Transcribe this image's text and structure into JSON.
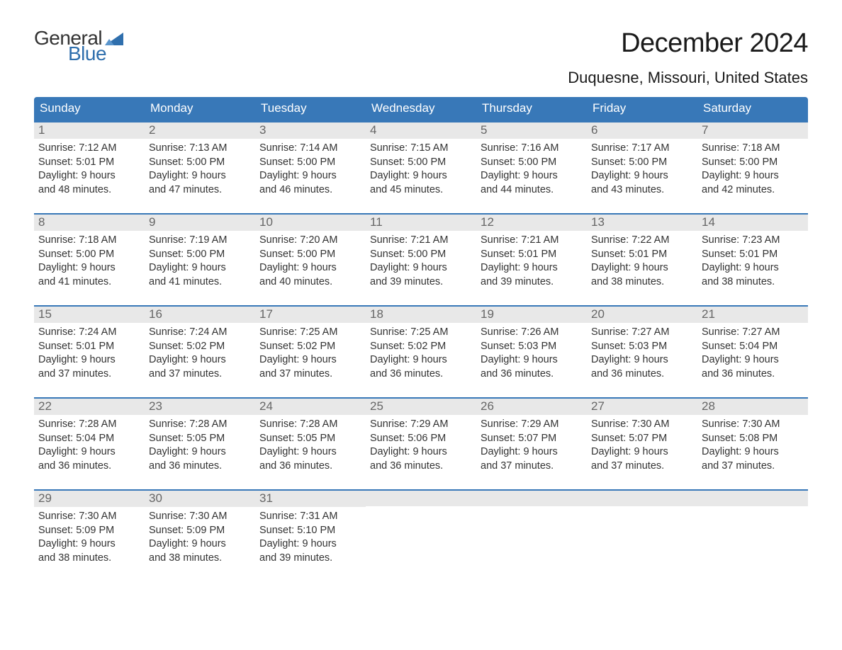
{
  "logo": {
    "text_general": "General",
    "text_blue": "Blue",
    "flag_color": "#2f6fad"
  },
  "title": "December 2024",
  "location": "Duquesne, Missouri, United States",
  "colors": {
    "header_bg": "#3878b8",
    "header_text": "#ffffff",
    "daynum_bg": "#e8e8e8",
    "daynum_text": "#666666",
    "row_border": "#3878b8",
    "body_text": "#333333",
    "page_bg": "#ffffff"
  },
  "day_labels": [
    "Sunday",
    "Monday",
    "Tuesday",
    "Wednesday",
    "Thursday",
    "Friday",
    "Saturday"
  ],
  "weeks": [
    [
      {
        "n": "1",
        "sr": "Sunrise: 7:12 AM",
        "ss": "Sunset: 5:01 PM",
        "d1": "Daylight: 9 hours",
        "d2": "and 48 minutes."
      },
      {
        "n": "2",
        "sr": "Sunrise: 7:13 AM",
        "ss": "Sunset: 5:00 PM",
        "d1": "Daylight: 9 hours",
        "d2": "and 47 minutes."
      },
      {
        "n": "3",
        "sr": "Sunrise: 7:14 AM",
        "ss": "Sunset: 5:00 PM",
        "d1": "Daylight: 9 hours",
        "d2": "and 46 minutes."
      },
      {
        "n": "4",
        "sr": "Sunrise: 7:15 AM",
        "ss": "Sunset: 5:00 PM",
        "d1": "Daylight: 9 hours",
        "d2": "and 45 minutes."
      },
      {
        "n": "5",
        "sr": "Sunrise: 7:16 AM",
        "ss": "Sunset: 5:00 PM",
        "d1": "Daylight: 9 hours",
        "d2": "and 44 minutes."
      },
      {
        "n": "6",
        "sr": "Sunrise: 7:17 AM",
        "ss": "Sunset: 5:00 PM",
        "d1": "Daylight: 9 hours",
        "d2": "and 43 minutes."
      },
      {
        "n": "7",
        "sr": "Sunrise: 7:18 AM",
        "ss": "Sunset: 5:00 PM",
        "d1": "Daylight: 9 hours",
        "d2": "and 42 minutes."
      }
    ],
    [
      {
        "n": "8",
        "sr": "Sunrise: 7:18 AM",
        "ss": "Sunset: 5:00 PM",
        "d1": "Daylight: 9 hours",
        "d2": "and 41 minutes."
      },
      {
        "n": "9",
        "sr": "Sunrise: 7:19 AM",
        "ss": "Sunset: 5:00 PM",
        "d1": "Daylight: 9 hours",
        "d2": "and 41 minutes."
      },
      {
        "n": "10",
        "sr": "Sunrise: 7:20 AM",
        "ss": "Sunset: 5:00 PM",
        "d1": "Daylight: 9 hours",
        "d2": "and 40 minutes."
      },
      {
        "n": "11",
        "sr": "Sunrise: 7:21 AM",
        "ss": "Sunset: 5:00 PM",
        "d1": "Daylight: 9 hours",
        "d2": "and 39 minutes."
      },
      {
        "n": "12",
        "sr": "Sunrise: 7:21 AM",
        "ss": "Sunset: 5:01 PM",
        "d1": "Daylight: 9 hours",
        "d2": "and 39 minutes."
      },
      {
        "n": "13",
        "sr": "Sunrise: 7:22 AM",
        "ss": "Sunset: 5:01 PM",
        "d1": "Daylight: 9 hours",
        "d2": "and 38 minutes."
      },
      {
        "n": "14",
        "sr": "Sunrise: 7:23 AM",
        "ss": "Sunset: 5:01 PM",
        "d1": "Daylight: 9 hours",
        "d2": "and 38 minutes."
      }
    ],
    [
      {
        "n": "15",
        "sr": "Sunrise: 7:24 AM",
        "ss": "Sunset: 5:01 PM",
        "d1": "Daylight: 9 hours",
        "d2": "and 37 minutes."
      },
      {
        "n": "16",
        "sr": "Sunrise: 7:24 AM",
        "ss": "Sunset: 5:02 PM",
        "d1": "Daylight: 9 hours",
        "d2": "and 37 minutes."
      },
      {
        "n": "17",
        "sr": "Sunrise: 7:25 AM",
        "ss": "Sunset: 5:02 PM",
        "d1": "Daylight: 9 hours",
        "d2": "and 37 minutes."
      },
      {
        "n": "18",
        "sr": "Sunrise: 7:25 AM",
        "ss": "Sunset: 5:02 PM",
        "d1": "Daylight: 9 hours",
        "d2": "and 36 minutes."
      },
      {
        "n": "19",
        "sr": "Sunrise: 7:26 AM",
        "ss": "Sunset: 5:03 PM",
        "d1": "Daylight: 9 hours",
        "d2": "and 36 minutes."
      },
      {
        "n": "20",
        "sr": "Sunrise: 7:27 AM",
        "ss": "Sunset: 5:03 PM",
        "d1": "Daylight: 9 hours",
        "d2": "and 36 minutes."
      },
      {
        "n": "21",
        "sr": "Sunrise: 7:27 AM",
        "ss": "Sunset: 5:04 PM",
        "d1": "Daylight: 9 hours",
        "d2": "and 36 minutes."
      }
    ],
    [
      {
        "n": "22",
        "sr": "Sunrise: 7:28 AM",
        "ss": "Sunset: 5:04 PM",
        "d1": "Daylight: 9 hours",
        "d2": "and 36 minutes."
      },
      {
        "n": "23",
        "sr": "Sunrise: 7:28 AM",
        "ss": "Sunset: 5:05 PM",
        "d1": "Daylight: 9 hours",
        "d2": "and 36 minutes."
      },
      {
        "n": "24",
        "sr": "Sunrise: 7:28 AM",
        "ss": "Sunset: 5:05 PM",
        "d1": "Daylight: 9 hours",
        "d2": "and 36 minutes."
      },
      {
        "n": "25",
        "sr": "Sunrise: 7:29 AM",
        "ss": "Sunset: 5:06 PM",
        "d1": "Daylight: 9 hours",
        "d2": "and 36 minutes."
      },
      {
        "n": "26",
        "sr": "Sunrise: 7:29 AM",
        "ss": "Sunset: 5:07 PM",
        "d1": "Daylight: 9 hours",
        "d2": "and 37 minutes."
      },
      {
        "n": "27",
        "sr": "Sunrise: 7:30 AM",
        "ss": "Sunset: 5:07 PM",
        "d1": "Daylight: 9 hours",
        "d2": "and 37 minutes."
      },
      {
        "n": "28",
        "sr": "Sunrise: 7:30 AM",
        "ss": "Sunset: 5:08 PM",
        "d1": "Daylight: 9 hours",
        "d2": "and 37 minutes."
      }
    ],
    [
      {
        "n": "29",
        "sr": "Sunrise: 7:30 AM",
        "ss": "Sunset: 5:09 PM",
        "d1": "Daylight: 9 hours",
        "d2": "and 38 minutes."
      },
      {
        "n": "30",
        "sr": "Sunrise: 7:30 AM",
        "ss": "Sunset: 5:09 PM",
        "d1": "Daylight: 9 hours",
        "d2": "and 38 minutes."
      },
      {
        "n": "31",
        "sr": "Sunrise: 7:31 AM",
        "ss": "Sunset: 5:10 PM",
        "d1": "Daylight: 9 hours",
        "d2": "and 39 minutes."
      },
      null,
      null,
      null,
      null
    ]
  ]
}
